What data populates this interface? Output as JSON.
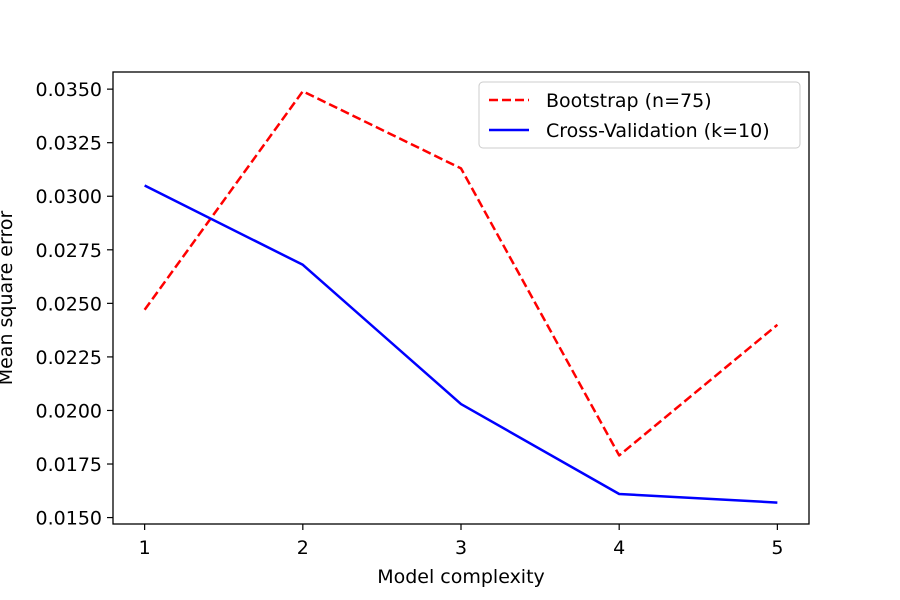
{
  "chart_data": {
    "type": "line",
    "title": "",
    "xlabel": "Model complexity",
    "ylabel": "Mean square error",
    "x": [
      1,
      2,
      3,
      4,
      5
    ],
    "xticks": [
      1,
      2,
      3,
      4,
      5
    ],
    "xtick_labels": [
      "1",
      "2",
      "3",
      "4",
      "5"
    ],
    "xlim": [
      0.8,
      5.2
    ],
    "ylim": [
      0.0147,
      0.0358
    ],
    "yticks": [
      0.015,
      0.0175,
      0.02,
      0.0225,
      0.025,
      0.0275,
      0.03,
      0.0325,
      0.035
    ],
    "ytick_labels": [
      "0.0150",
      "0.0175",
      "0.0200",
      "0.0225",
      "0.0250",
      "0.0275",
      "0.0300",
      "0.0325",
      "0.0350"
    ],
    "grid": false,
    "legend_position": "top-right",
    "series": [
      {
        "name": "Bootstrap (n=75)",
        "values": [
          0.0247,
          0.0349,
          0.0313,
          0.0179,
          0.024
        ],
        "color": "#ff0000",
        "line_style": "dashed"
      },
      {
        "name": "Cross-Validation (k=10)",
        "values": [
          0.0305,
          0.0268,
          0.0203,
          0.0161,
          0.0157
        ],
        "color": "#0000ff",
        "line_style": "solid"
      }
    ]
  }
}
